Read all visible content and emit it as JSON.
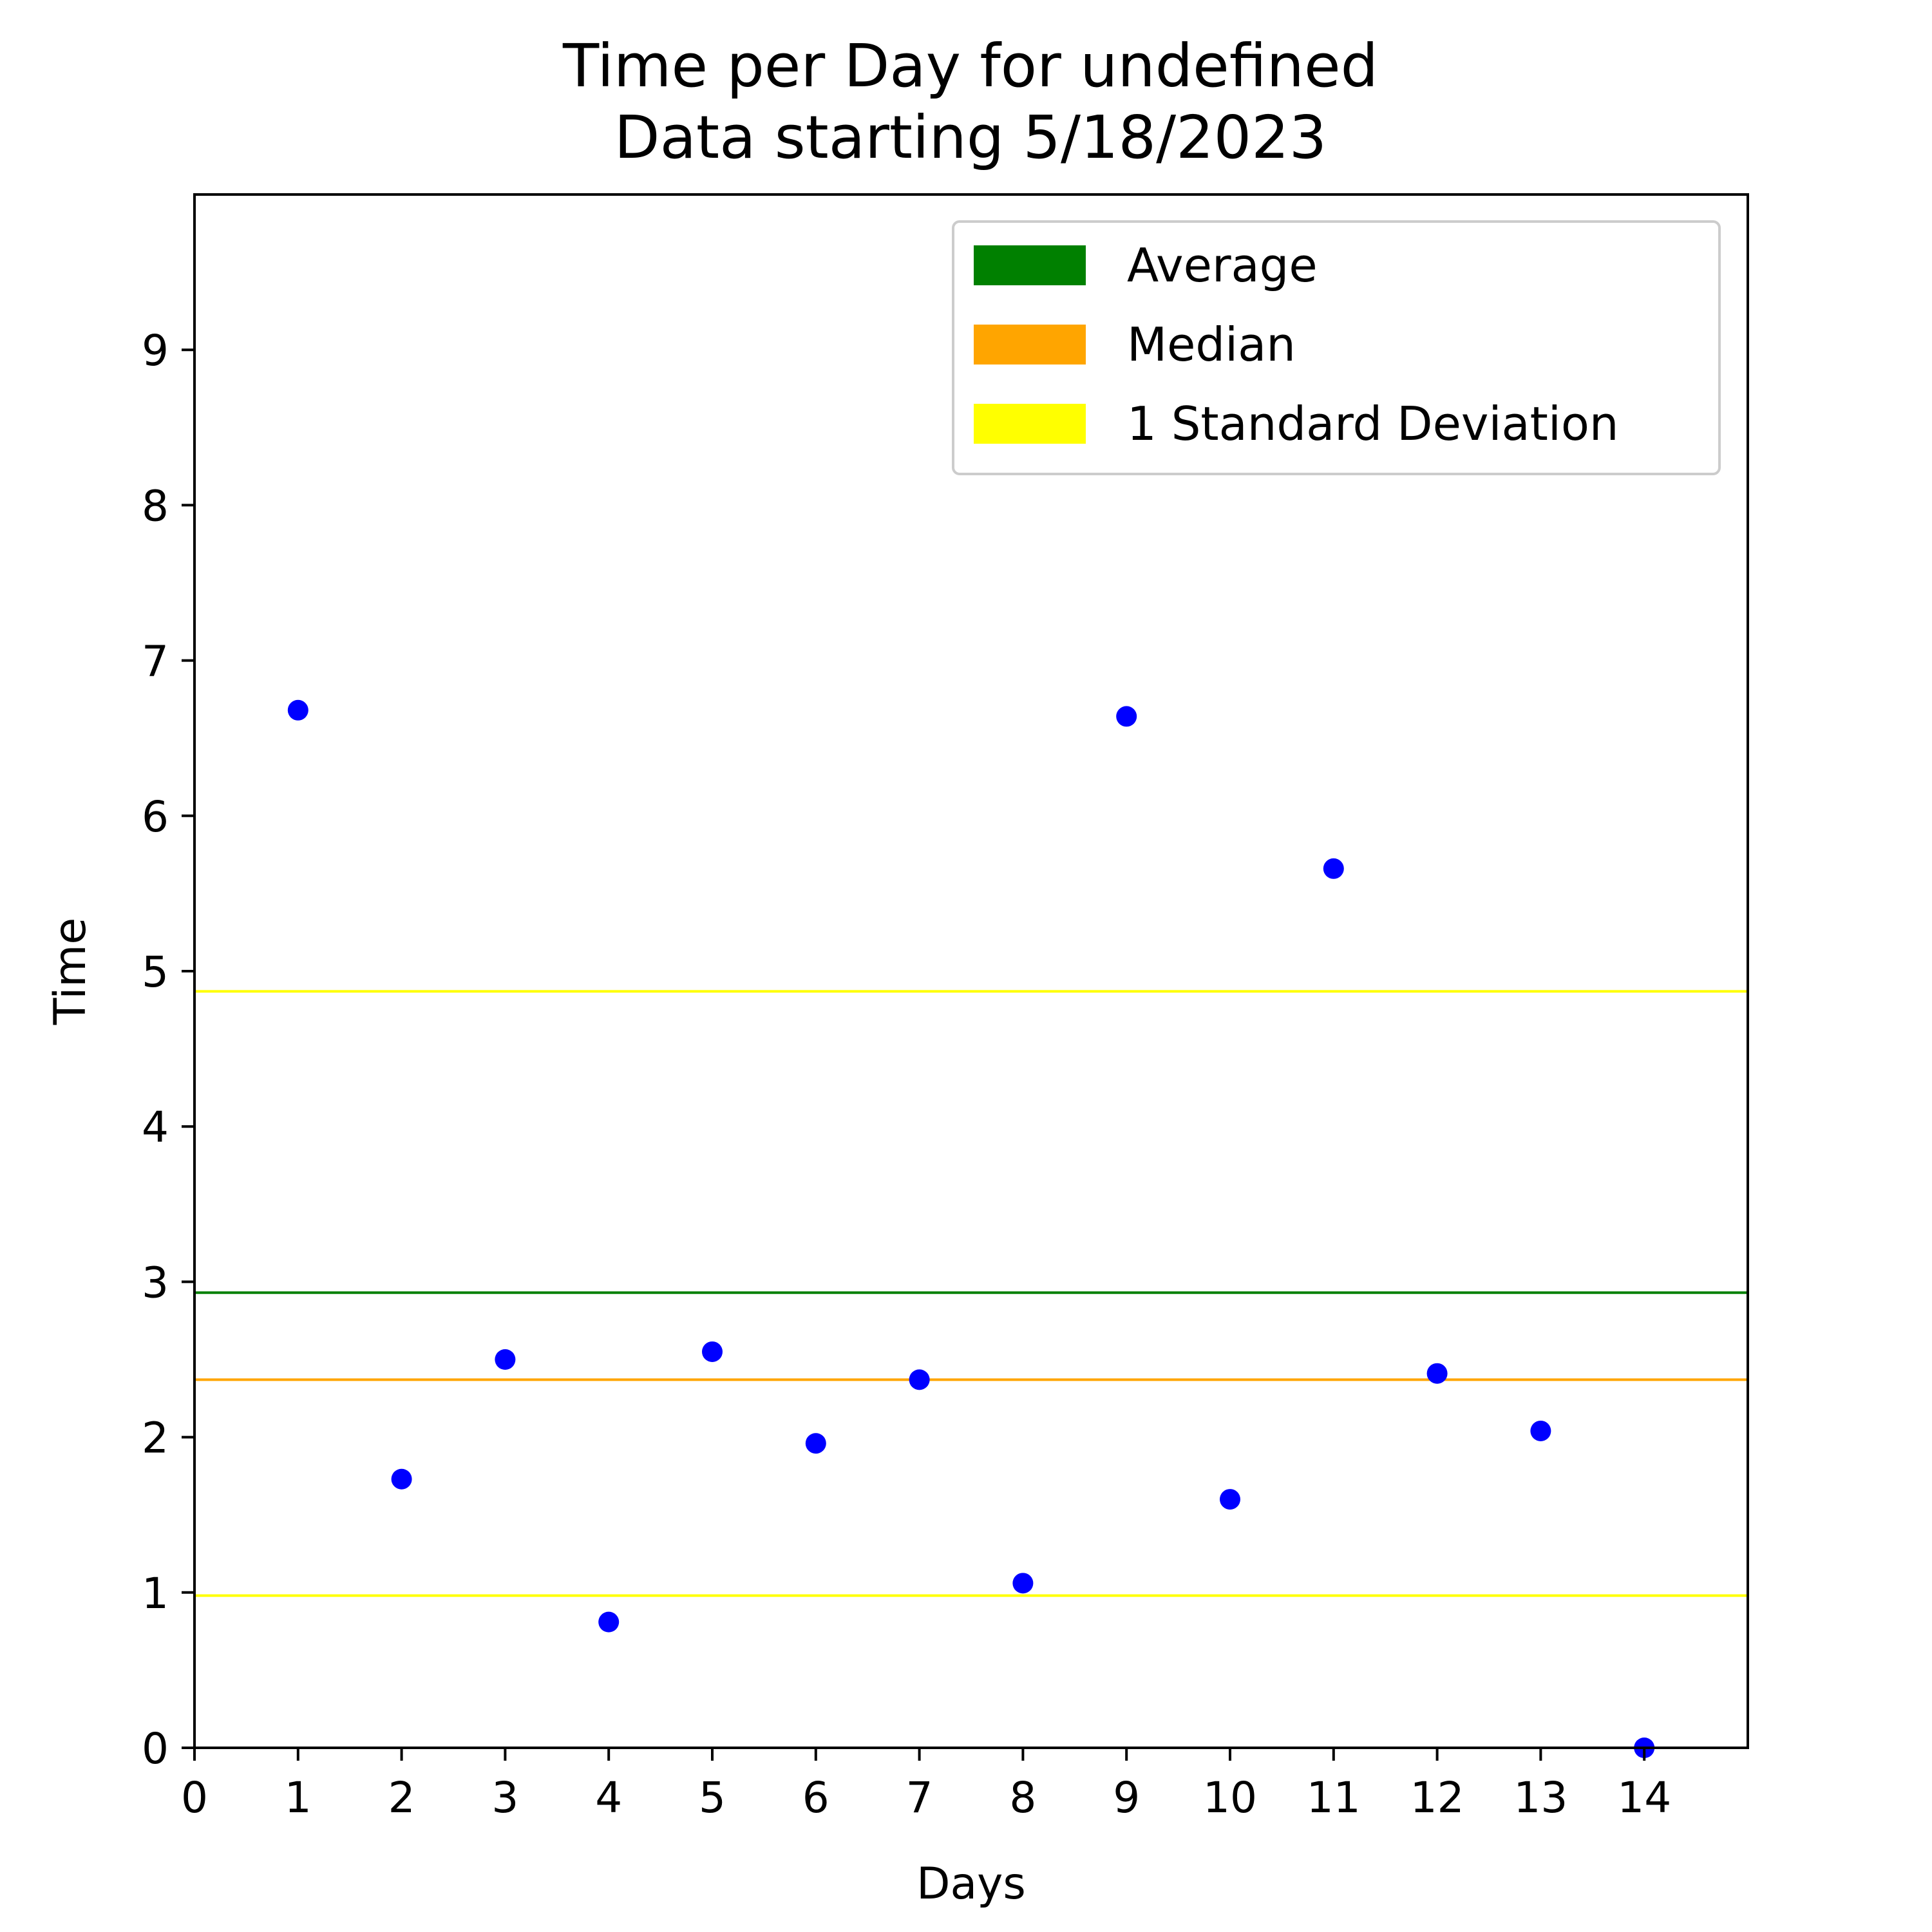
{
  "chart_data": {
    "type": "scatter",
    "title": "Time per Day for undefined",
    "subtitle": "Data starting 5/18/2023",
    "xlabel": "Days",
    "ylabel": "Time",
    "xlim": [
      0,
      15
    ],
    "ylim": [
      0,
      10
    ],
    "xticks": [
      0,
      1,
      2,
      3,
      4,
      5,
      6,
      7,
      8,
      9,
      10,
      11,
      12,
      13,
      14
    ],
    "yticks": [
      0,
      1,
      2,
      3,
      4,
      5,
      6,
      7,
      8,
      9
    ],
    "grid": false,
    "legend_position": "top-right",
    "points_color": "#0000ff",
    "series": [
      {
        "x": [
          1,
          2,
          3,
          4,
          5,
          6,
          7,
          8,
          9,
          10,
          11,
          12,
          13,
          14
        ],
        "y": [
          6.68,
          1.73,
          2.5,
          0.81,
          2.55,
          1.96,
          2.37,
          1.06,
          6.64,
          1.6,
          5.66,
          2.41,
          2.04,
          0.0
        ]
      }
    ],
    "reference_lines": [
      {
        "name": "Average",
        "y": 2.93,
        "color": "#008000"
      },
      {
        "name": "Median",
        "y": 2.37,
        "color": "#ffa500"
      },
      {
        "name": "1 Standard Deviation",
        "y": 4.87,
        "color": "#ffff00"
      },
      {
        "name": "1 Standard Deviation",
        "y": 0.98,
        "color": "#ffff00"
      }
    ],
    "legend": [
      {
        "label": "Average",
        "color": "#008000"
      },
      {
        "label": "Median",
        "color": "#ffa500"
      },
      {
        "label": "1 Standard Deviation",
        "color": "#ffff00"
      }
    ]
  }
}
